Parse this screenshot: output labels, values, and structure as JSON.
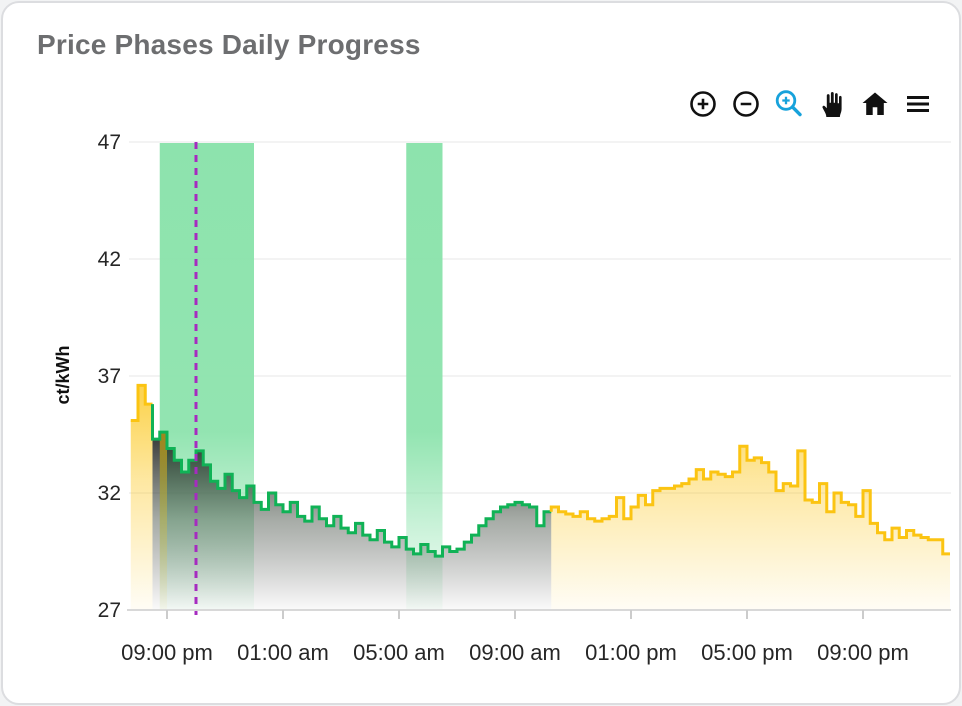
{
  "card": {
    "title": "Price Phases Daily Progress"
  },
  "toolbar": {
    "color": "#111111",
    "active_color": "#17A2DB",
    "tools": [
      {
        "id": "zoom-in",
        "icon": "zoom-in-icon",
        "active": false
      },
      {
        "id": "zoom-out",
        "icon": "zoom-out-icon",
        "active": false
      },
      {
        "id": "box-zoom",
        "icon": "box-zoom-icon",
        "active": true
      },
      {
        "id": "pan",
        "icon": "pan-hand-icon",
        "active": false
      },
      {
        "id": "home",
        "icon": "home-icon",
        "active": false
      },
      {
        "id": "menu",
        "icon": "menu-icon",
        "active": false
      }
    ]
  },
  "chart_data": {
    "type": "area",
    "title": "Price Phases Daily Progress",
    "ylabel": "ct/kWh",
    "ylim": [
      27,
      47
    ],
    "y_ticks": [
      47,
      42,
      37,
      32,
      27
    ],
    "x_ticks": {
      "hours": [
        21,
        25,
        29,
        33,
        37,
        41,
        45
      ],
      "labels": [
        "09:00 pm",
        "01:00 am",
        "05:00 am",
        "09:00 am",
        "01:00 pm",
        "05:00 pm",
        "09:00 pm"
      ]
    },
    "step_minutes": 15,
    "grid_on": true,
    "legend": "none",
    "series": [
      {
        "name": "price-expensive-evening",
        "phase": "expensive",
        "line_color": "#FBC412",
        "fill": "yellow-gradient",
        "start_hour": 19.75,
        "values": [
          35.1,
          36.6,
          35.8
        ]
      },
      {
        "name": "price-cheap-night-phase",
        "phase": "cheap",
        "line_color": "#10B256",
        "fill": "dark-gradient",
        "start_hour": 20.5,
        "highlight_step_index": 1,
        "values": [
          34.3,
          34.6,
          33.9,
          33.4,
          32.9,
          33.4,
          33.8,
          33.2,
          32.5,
          32.2,
          32.8,
          32.1,
          31.8,
          32.3,
          31.6,
          31.3,
          32.0,
          31.5,
          31.2,
          31.6,
          31.0,
          30.8,
          31.4,
          30.9,
          30.6,
          31.0,
          30.5,
          30.3,
          30.7,
          30.2,
          30.0,
          30.4,
          29.9,
          29.7,
          30.1,
          29.6,
          29.4,
          29.8,
          29.5,
          29.3,
          29.7,
          29.5,
          29.6,
          29.9,
          30.2,
          30.6,
          30.9,
          31.2,
          31.4,
          31.5,
          31.6,
          31.5,
          31.4,
          30.6,
          31.2
        ]
      },
      {
        "name": "price-expensive-day",
        "phase": "expensive",
        "line_color": "#FBC412",
        "fill": "yellow-gradient",
        "start_hour": 34.25,
        "values": [
          31.4,
          31.2,
          31.1,
          31.0,
          31.2,
          30.9,
          30.8,
          30.9,
          31.0,
          31.8,
          30.9,
          31.4,
          31.9,
          31.5,
          32.1,
          32.2,
          32.2,
          32.3,
          32.4,
          32.6,
          33.0,
          32.6,
          32.9,
          32.8,
          32.7,
          32.9,
          34.0,
          33.4,
          33.5,
          33.3,
          32.9,
          32.1,
          32.4,
          32.3,
          33.8,
          31.7,
          31.6,
          32.4,
          31.2,
          32.0,
          31.6,
          31.5,
          31.0,
          32.1,
          30.7,
          30.3,
          30.0,
          30.5,
          30.1,
          30.4,
          30.2,
          30.1,
          30.0,
          30.0,
          29.4
        ]
      }
    ],
    "green_phase_bands": [
      {
        "start_hour": 20.75,
        "end_hour": 24.0
      },
      {
        "start_hour": 29.25,
        "end_hour": 30.5
      }
    ],
    "now_line": {
      "hour": 22.0,
      "style": "dashed",
      "color": "#A62BC0"
    },
    "colors": {
      "band_green": "#8DE3AD",
      "expensive_yellow": "#FBC412",
      "cheap_green": "#10B256",
      "dark_fill": "#161616",
      "grid": "#efefef",
      "axis": "#d8d8d8",
      "tick_text": "#262626",
      "title_text": "#6d6e70"
    }
  }
}
